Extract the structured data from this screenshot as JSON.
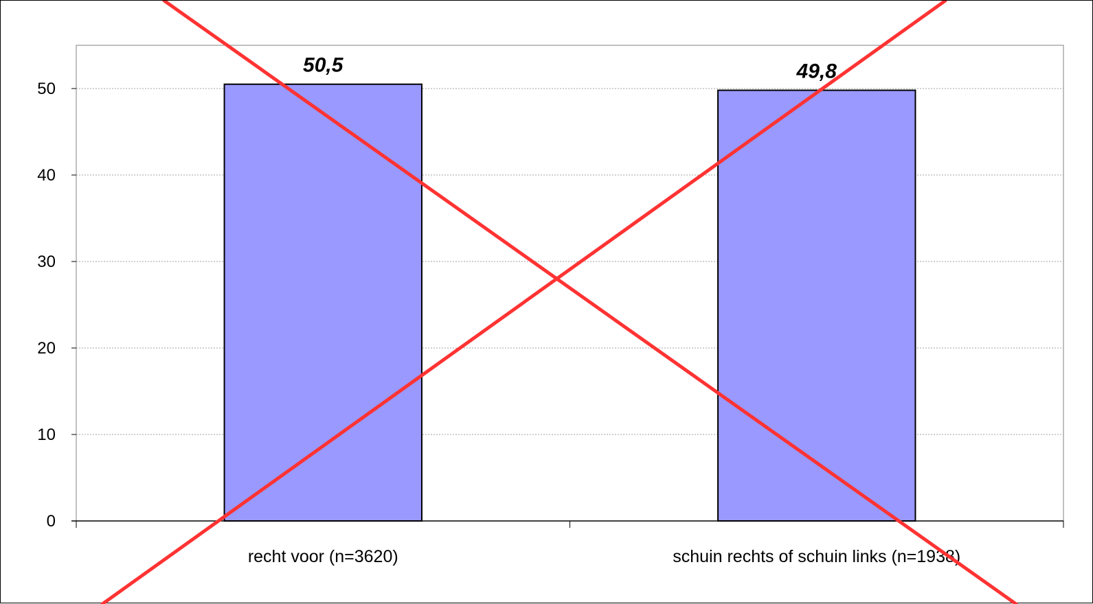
{
  "chart_data": {
    "type": "bar",
    "title": "",
    "xlabel": "",
    "ylabel": "",
    "categories": [
      "recht voor (n=3620)",
      "schuin rechts of schuin links (n=1938)"
    ],
    "values": [
      50.5,
      49.8
    ],
    "data_labels": [
      "50,5",
      "49,8"
    ],
    "ylim": [
      0,
      55
    ],
    "yticks": [
      0,
      10,
      20,
      30,
      40,
      50
    ],
    "grid": true,
    "legend": "none",
    "crossed_out": true,
    "colors": {
      "bar_fill": "#9999ff",
      "bar_stroke": "#000000",
      "gridline": "#a0a0a0",
      "plot_border": "#808080",
      "cross": "#ff3333"
    }
  }
}
